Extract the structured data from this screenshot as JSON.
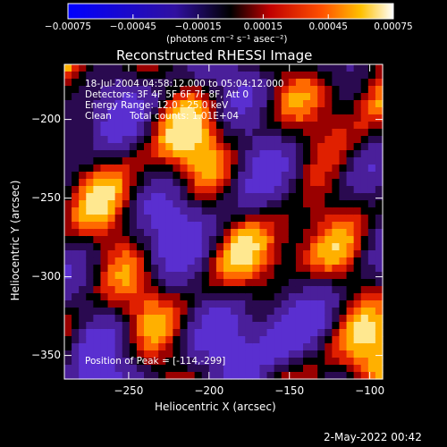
{
  "chart_data": {
    "type": "heatmap",
    "title": "Reconstructed RHESSI Image",
    "xlabel": "Heliocentric X (arcsec)",
    "ylabel": "Heliocentric Y (arcsec)",
    "xlim": [
      -290,
      -92
    ],
    "ylim": [
      -365,
      -165
    ],
    "x_ticks": [
      -250,
      -200,
      -150,
      -100
    ],
    "y_ticks": [
      -200,
      -250,
      -300,
      -350
    ],
    "colorbar": {
      "min": -0.00075,
      "max": 0.00075,
      "ticks": [
        "-0.00075",
        "-0.00045",
        "-0.00015",
        "0.00015",
        "0.00045",
        "0.00075"
      ],
      "unit_label": "(photons cm⁻² s⁻¹ asec⁻²)"
    },
    "peak": [
      -114,
      -299
    ],
    "grid": false
  },
  "annotations": {
    "time": "18-Jul-2004 04:58:12.000 to 05:04:12.000",
    "detectors": "Detectors: 3F 4F 5F 6F 7F 8F, Att 0",
    "energy": "Energy Range: 12.0 - 25.0 keV",
    "method": "Clean",
    "counts": "Total counts: 1.01E+04",
    "peak_text": "Position of Peak = [-114,-299]"
  },
  "footer": {
    "date": "2-May-2022 00:42"
  }
}
